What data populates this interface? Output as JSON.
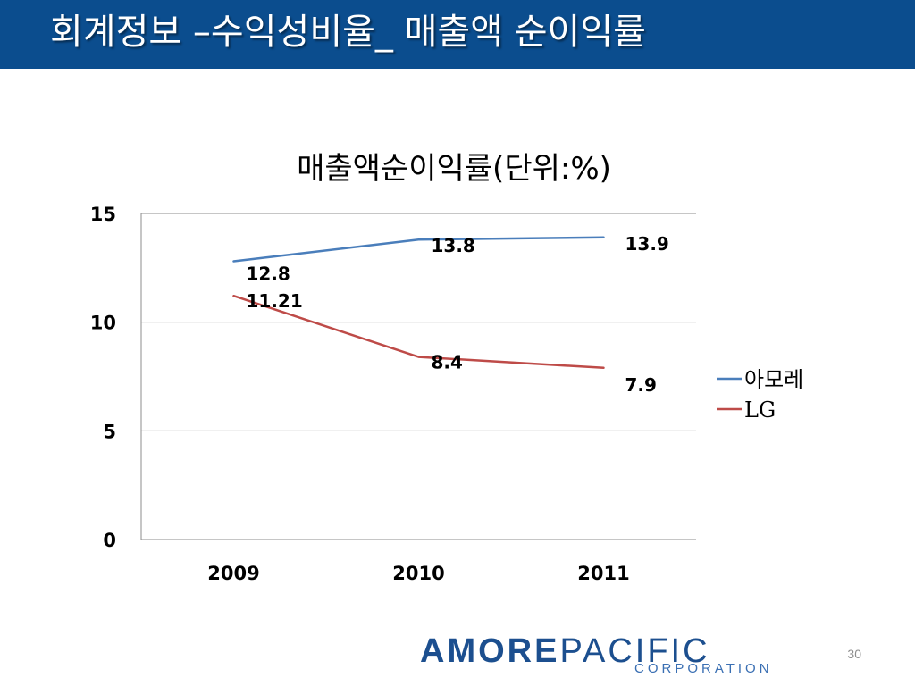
{
  "slide": {
    "title": "회계정보 –수익성비율_ 매출액 순이익률",
    "page_number": "30"
  },
  "logo": {
    "part1": "AMORE",
    "part2": "PACIFIC",
    "sub": "CORPORATION"
  },
  "colors": {
    "header_bg": "#0b4d8e",
    "amore": "#4a7ebb",
    "lg": "#be4b48"
  },
  "chart_data": {
    "type": "line",
    "title": "매출액순이익률(단위:%)",
    "categories": [
      "2009",
      "2010",
      "2011"
    ],
    "series": [
      {
        "name": "아모레",
        "values": [
          12.8,
          13.8,
          13.9
        ],
        "labels": [
          "12.8",
          "13.8",
          "13.9"
        ],
        "color": "#4a7ebb"
      },
      {
        "name": "LG",
        "values": [
          11.21,
          8.4,
          7.9
        ],
        "labels": [
          "11.21",
          "8.4",
          "7.9"
        ],
        "color": "#be4b48"
      }
    ],
    "ylim": [
      0,
      15
    ],
    "yticks": [
      0,
      5,
      10,
      15
    ],
    "grid": true,
    "legend": "right"
  }
}
